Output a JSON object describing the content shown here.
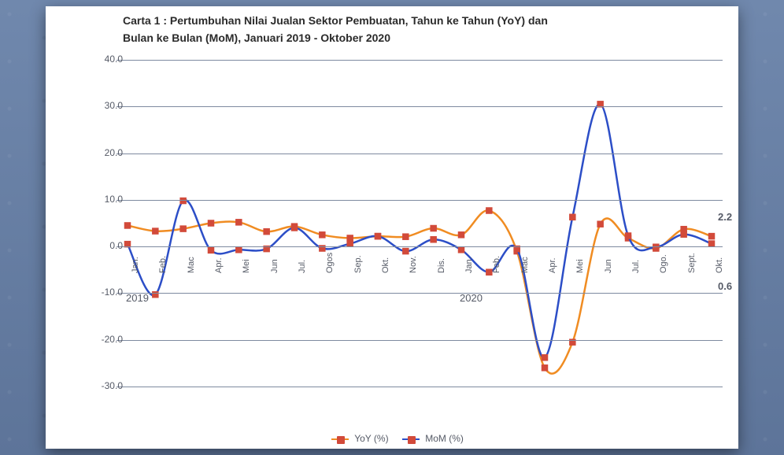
{
  "title_line1": "Carta 1 : Pertumbuhan Nilai Jualan Sektor Pembuatan, Tahun ke Tahun (YoY) dan",
  "title_line2": "Bulan ke Bulan (MoM), Januari 2019 - Oktober 2020",
  "chart": {
    "type": "line",
    "x_labels": [
      "Jan.",
      "Feb.",
      "Mac",
      "Apr.",
      "Mei",
      "Jun",
      "Jul.",
      "Ogos",
      "Sep.",
      "Okt.",
      "Nov.",
      "Dis.",
      "Jan.",
      "Feb.",
      "Mac",
      "Apr.",
      "Mei",
      "Jun",
      "Jul.",
      "Ogo.",
      "Sept.",
      "Okt."
    ],
    "year_markers": [
      {
        "label": "2019",
        "index": 0
      },
      {
        "label": "2020",
        "index": 12
      }
    ],
    "ylim": [
      -30,
      40
    ],
    "ytick_step": 10,
    "grid_color": "#7e8aa0",
    "background_color": "#ffffff",
    "series": [
      {
        "name": "YoY (%)",
        "color_line": "#f08c22",
        "color_marker_border": "#d24a3a",
        "color_marker_fill": "#d24a3a",
        "values": [
          4.5,
          3.3,
          3.8,
          5.0,
          5.2,
          3.2,
          4.3,
          2.5,
          1.8,
          2.2,
          2.1,
          3.9,
          2.5,
          7.7,
          -1.0,
          -26.0,
          -20.5,
          4.8,
          1.8,
          -0.4,
          3.7,
          2.2
        ]
      },
      {
        "name": "MoM (%)",
        "color_line": "#2c4ec7",
        "color_marker_border": "#d24a3a",
        "color_marker_fill": "#d24a3a",
        "values": [
          0.5,
          -10.3,
          9.8,
          -0.8,
          -0.7,
          -0.5,
          4.0,
          -0.4,
          0.6,
          2.2,
          -1.0,
          1.5,
          -0.7,
          -5.5,
          -0.5,
          -23.8,
          6.3,
          30.5,
          2.3,
          -0.1,
          2.6,
          0.6
        ]
      }
    ],
    "end_labels": [
      {
        "text": "2.2",
        "series": 0
      },
      {
        "text": "0.6",
        "series": 1
      }
    ],
    "legend": [
      "YoY (%)",
      "MoM (%)"
    ],
    "label_fontsize": 12,
    "title_fontsize": 14,
    "line_width": 2.5,
    "marker_size": 7
  }
}
